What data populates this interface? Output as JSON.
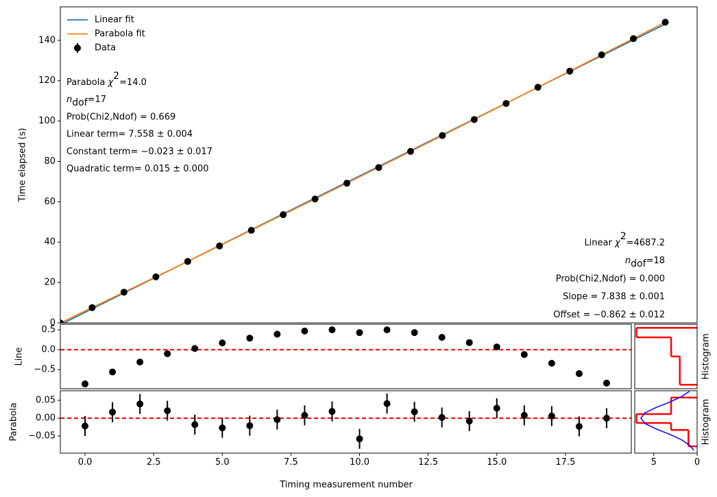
{
  "chart_data": [
    {
      "type": "line",
      "ylabel": "Time elapsed (s)",
      "xlim": [
        0,
        20
      ],
      "ylim": [
        0,
        156.6
      ],
      "yticks": [
        0,
        20,
        40,
        60,
        80,
        100,
        120,
        140
      ],
      "legend": "upper left",
      "series": [
        {
          "name": "Linear fit",
          "color": "#1f77b4",
          "x": [
            0,
            19
          ],
          "values": [
            -0.862,
            148.06
          ]
        },
        {
          "name": "Parabola fit",
          "color": "#ff7f0e",
          "x": [
            0,
            4,
            8,
            12,
            16,
            19
          ],
          "values": [
            -0.023,
            30.449,
            61.401,
            92.833,
            124.745,
            148.994
          ]
        },
        {
          "name": "Data",
          "color": "#000000",
          "marker": "o",
          "x": [
            0,
            1,
            2,
            3,
            4,
            5,
            6,
            7,
            8,
            9,
            10,
            11,
            12,
            13,
            14,
            15,
            16,
            17,
            18,
            19
          ],
          "values": [
            -0.045,
            7.567,
            15.193,
            22.807,
            30.431,
            38.115,
            45.844,
            53.614,
            61.409,
            69.233,
            76.999,
            84.971,
            92.851,
            100.768,
            108.721,
            116.75,
            124.753,
            132.804,
            140.858,
            148.994
          ]
        }
      ],
      "annotations": [
        {
          "lines": [
            [
              {
                "text": "Parabola "
              },
              {
                "text": "χ",
                "style": "italic"
              },
              {
                "text": "2",
                "style": "sup"
              },
              {
                "text": "=14.0"
              }
            ],
            [
              {
                "text": "n",
                "style": "italic"
              },
              {
                "text": "dof",
                "style": "sub"
              },
              {
                "text": "=17"
              }
            ],
            [
              {
                "text": "Prob(Chi2,Ndof) = 0.669"
              }
            ],
            [
              {
                "text": "Linear term= 7.558 ± 0.004"
              }
            ],
            [
              {
                "text": "Constant term= −0.023 ± 0.017"
              }
            ],
            [
              {
                "text": "Quadratic term= 0.015 ± 0.000"
              }
            ]
          ]
        },
        {
          "lines": [
            [
              {
                "text": "Linear "
              },
              {
                "text": "χ",
                "style": "italic"
              },
              {
                "text": "2",
                "style": "sup"
              },
              {
                "text": "=4687.2"
              }
            ],
            [
              {
                "text": "n",
                "style": "italic"
              },
              {
                "text": "dof",
                "style": "sub"
              },
              {
                "text": "=18"
              }
            ],
            [
              {
                "text": "Prob(Chi2,Ndof) = 0.000"
              }
            ],
            [
              {
                "text": "Slope = 7.838 ± 0.001"
              }
            ],
            [
              {
                "text": "Offset = −0.862 ± 0.012"
              }
            ]
          ]
        }
      ]
    },
    {
      "type": "scatter",
      "ylabel": "Line",
      "xlim": [
        -0.9,
        19.9
      ],
      "ylim": [
        -0.98,
        0.64
      ],
      "yticks": [
        {
          "value": -0.5,
          "label": "−0.5"
        },
        {
          "value": 0,
          "label": "0.0"
        },
        {
          "value": 0.5,
          "label": "0.5"
        }
      ],
      "reference_line": {
        "value": 0,
        "color": "#ff0000"
      },
      "series": [
        {
          "color": "#000000",
          "marker": "o",
          "x": [
            0,
            1,
            2,
            3,
            4,
            5,
            6,
            7,
            8,
            9,
            10,
            11,
            12,
            13,
            14,
            15,
            16,
            17,
            18,
            19
          ],
          "values": [
            -0.86,
            -0.56,
            -0.31,
            -0.1,
            0.03,
            0.17,
            0.29,
            0.39,
            0.47,
            0.5,
            0.43,
            0.5,
            0.43,
            0.31,
            0.18,
            0.07,
            -0.12,
            -0.34,
            -0.6,
            -0.84
          ]
        }
      ]
    },
    {
      "type": "scatter",
      "ylabel": "Parabola",
      "xlabel": "Timing measurement number",
      "xlim": [
        -0.9,
        19.9
      ],
      "ylim": [
        -0.098,
        0.077
      ],
      "yticks": [
        {
          "value": -0.05,
          "label": "−0.05"
        },
        {
          "value": 0,
          "label": "0.00"
        },
        {
          "value": 0.05,
          "label": "0.05"
        }
      ],
      "xticks": [
        {
          "value": 0,
          "label": "0.0"
        },
        {
          "value": 2.5,
          "label": "2.5"
        },
        {
          "value": 5,
          "label": "5.0"
        },
        {
          "value": 7.5,
          "label": "7.5"
        },
        {
          "value": 10,
          "label": "10.0"
        },
        {
          "value": 12.5,
          "label": "12.5"
        },
        {
          "value": 15,
          "label": "15.0"
        },
        {
          "value": 17.5,
          "label": "17.5"
        }
      ],
      "reference_line": {
        "value": 0,
        "color": "#ff0000"
      },
      "series": [
        {
          "color": "#000000",
          "marker": "o",
          "x": [
            0,
            1,
            2,
            3,
            4,
            5,
            6,
            7,
            8,
            9,
            10,
            11,
            12,
            13,
            14,
            15,
            16,
            17,
            18,
            19
          ],
          "values": [
            -0.022,
            0.017,
            0.04,
            0.021,
            -0.018,
            -0.027,
            -0.021,
            -0.004,
            0.008,
            0.019,
            -0.058,
            0.041,
            0.018,
            0.002,
            -0.008,
            0.028,
            0.008,
            0.006,
            -0.023,
            0
          ],
          "errors": [
            0.028,
            0.028,
            0.028,
            0.028,
            0.028,
            0.028,
            0.028,
            0.028,
            0.028,
            0.028,
            0.028,
            0.028,
            0.028,
            0.028,
            0.028,
            0.028,
            0.028,
            0.028,
            0.028,
            0.028
          ]
        }
      ]
    },
    {
      "type": "histogram",
      "ylabel": "Histogram",
      "xlim": [
        7.2,
        0
      ],
      "ylim": [
        -0.98,
        0.64
      ],
      "color": "#ff0000",
      "bins": [
        -0.88,
        -0.17,
        0.31,
        0.55
      ],
      "values": [
        2,
        3,
        7
      ]
    },
    {
      "type": "histogram",
      "ylabel": "Histogram",
      "xlim": [
        7.2,
        0
      ],
      "ylim": [
        -0.098,
        0.077
      ],
      "color": "#ff0000",
      "xticks": [
        5,
        0
      ],
      "bins": [
        -0.079,
        -0.033,
        -0.0135,
        0.0115,
        0.058
      ],
      "values": [
        1,
        3,
        7,
        3
      ],
      "curve": {
        "color": "#0000ff",
        "x": [
          -0.09,
          -0.075,
          -0.06,
          -0.045,
          -0.03,
          -0.015,
          0,
          0.015,
          0.03,
          0.045,
          0.06,
          0.075
        ],
        "values": [
          0.38,
          0.9,
          1.84,
          3.19,
          4.74,
          6.01,
          6.5,
          6.01,
          4.74,
          3.19,
          1.84,
          0.9
        ]
      }
    }
  ]
}
